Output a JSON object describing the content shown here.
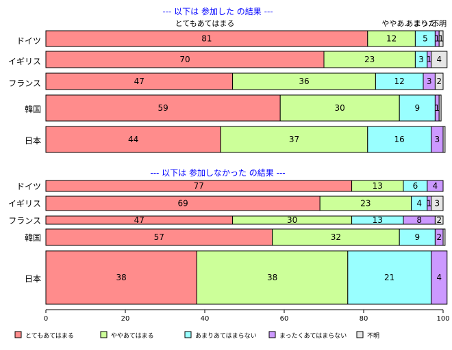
{
  "chart_data": {
    "type": "bar",
    "orientation": "horizontal",
    "stacked": true,
    "xlim": [
      0,
      100
    ],
    "x_ticks": [
      0,
      20,
      40,
      60,
      80,
      100
    ],
    "grid": false,
    "legend_position": "bottom",
    "series_colors": [
      "#FF8C8C",
      "#CCFF99",
      "#99FFFF",
      "#CC99FF",
      "#E6E6E6"
    ],
    "legend": [
      "とてもあてはまる",
      "ややあてはまる",
      "あまりあてはまらない",
      "まったくあてはまらない",
      "不明"
    ],
    "panels": [
      {
        "title": "--- 以下は 参加した の結果 ---",
        "column_labels": [
          {
            "text": "とてもあてはまる",
            "x": 40
          },
          {
            "text": "ややあ..",
            "x": 88
          },
          {
            "text": "あまり..",
            "x": 94
          },
          {
            "text": "まった..",
            "x": 96
          },
          {
            "text": "不明",
            "x": 99
          }
        ],
        "categories": [
          "ドイツ",
          "イギリス",
          "フランス",
          "韓国",
          "日本"
        ],
        "values": [
          [
            81,
            12,
            5,
            1,
            1
          ],
          [
            70,
            23,
            3,
            1,
            4
          ],
          [
            47,
            36,
            12,
            3,
            2
          ],
          [
            59,
            30,
            9,
            1,
            0.5
          ],
          [
            44,
            37,
            16,
            3,
            0.5
          ]
        ],
        "value_labels": [
          [
            "81",
            "12",
            "5",
            "1",
            "1"
          ],
          [
            "70",
            "23",
            "3",
            "1",
            "4"
          ],
          [
            "47",
            "36",
            "12",
            "3",
            "2"
          ],
          [
            "59",
            "30",
            "9",
            "1",
            ""
          ],
          [
            "44",
            "37",
            "16",
            "3",
            ""
          ]
        ]
      },
      {
        "title": "--- 以下は 参加しなかった の結果 ---",
        "column_labels": [],
        "categories": [
          "ドイツ",
          "イギリス",
          "フランス",
          "韓国",
          "日本"
        ],
        "values": [
          [
            77,
            13,
            6,
            4,
            0
          ],
          [
            69,
            23,
            4,
            1,
            3
          ],
          [
            47,
            30,
            13,
            8,
            2
          ],
          [
            57,
            32,
            9,
            2,
            0.5
          ],
          [
            38,
            38,
            21,
            4,
            0
          ]
        ],
        "value_labels": [
          [
            "77",
            "13",
            "6",
            "4",
            ""
          ],
          [
            "69",
            "23",
            "4",
            "1",
            "3"
          ],
          [
            "47",
            "30",
            "13",
            "8",
            "2"
          ],
          [
            "57",
            "32",
            "9",
            "2",
            ""
          ],
          [
            "38",
            "38",
            "21",
            "4",
            ""
          ]
        ]
      }
    ]
  }
}
